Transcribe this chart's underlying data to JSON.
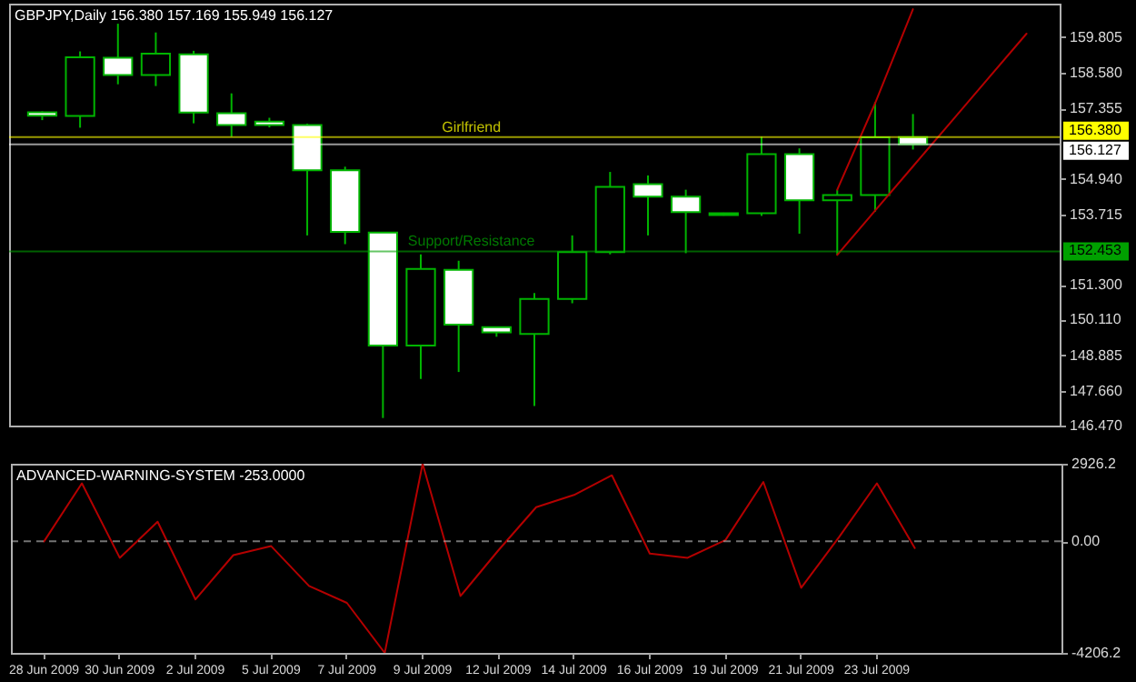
{
  "chart_data": [
    {
      "type": "candlestick",
      "title": "GBPJPY,Daily 156.380 157.169 155.949 156.127",
      "categories": [
        null,
        null,
        null,
        null,
        null,
        null,
        null,
        null,
        null,
        null,
        null,
        null,
        null,
        null,
        null,
        null,
        null,
        null,
        null,
        null,
        null,
        null,
        null,
        null,
        null,
        null,
        null
      ],
      "ohlc": [
        [
          157.23,
          157.26,
          156.96,
          157.11
        ],
        [
          157.1,
          159.32,
          156.7,
          159.12
        ],
        [
          159.1,
          160.27,
          158.19,
          158.51
        ],
        [
          158.51,
          159.97,
          158.13,
          159.24
        ],
        [
          159.22,
          159.34,
          156.85,
          157.22
        ],
        [
          157.2,
          157.88,
          156.39,
          156.79
        ],
        [
          156.91,
          157.04,
          156.71,
          156.79
        ],
        [
          156.79,
          156.84,
          153.0,
          155.24
        ],
        [
          155.24,
          155.36,
          152.7,
          153.12
        ],
        [
          153.1,
          153.12,
          146.73,
          149.22
        ],
        [
          149.22,
          152.35,
          148.07,
          151.85
        ],
        [
          151.82,
          152.13,
          148.31,
          149.94
        ],
        [
          149.85,
          149.87,
          149.52,
          149.67
        ],
        [
          149.62,
          151.02,
          147.14,
          150.82
        ],
        [
          150.82,
          153.0,
          150.67,
          152.43
        ],
        [
          152.43,
          155.18,
          152.35,
          154.67
        ],
        [
          154.76,
          155.06,
          153.0,
          154.33
        ],
        [
          154.33,
          154.57,
          152.39,
          153.8
        ],
        [
          153.7,
          153.78,
          153.68,
          153.76
        ],
        [
          153.76,
          156.39,
          153.67,
          155.79
        ],
        [
          155.79,
          155.99,
          153.06,
          154.21
        ],
        [
          154.21,
          154.57,
          152.33,
          154.39
        ],
        [
          154.39,
          157.58,
          153.81,
          156.37
        ],
        [
          156.38,
          157.169,
          155.949,
          156.127
        ],
        null,
        null,
        null
      ],
      "color": "#00b400",
      "series": [
        {
          "type": "line",
          "color": "#b40000",
          "values": [
            null,
            null,
            null,
            null,
            null,
            null,
            null,
            null,
            null,
            null,
            null,
            null,
            null,
            null,
            null,
            null,
            null,
            null,
            null,
            null,
            null,
            154.57,
            157.54,
            160.77,
            null,
            null,
            null
          ]
        },
        {
          "type": "line",
          "color": "#b40000",
          "values": [
            null,
            null,
            null,
            null,
            null,
            null,
            null,
            null,
            null,
            null,
            null,
            null,
            null,
            null,
            null,
            null,
            null,
            null,
            null,
            null,
            null,
            152.33,
            153.85,
            155.37,
            156.89,
            158.41,
            159.93
          ]
        }
      ],
      "ylim": [
        146.47,
        160.96
      ],
      "yticks": [
        159.805,
        {
          "value": 158.58,
          "label": "158.580"
        },
        157.355,
        {
          "value": 156.38,
          "label": "156.380"
        },
        156.127,
        {
          "value": 154.94,
          "label": "154.940"
        },
        153.715,
        152.453,
        {
          "value": 151.3,
          "label": "151.300"
        },
        {
          "value": 150.11,
          "label": "150.110"
        },
        148.885,
        {
          "value": 147.66,
          "label": "147.660"
        },
        {
          "value": 146.47,
          "label": "146.470"
        }
      ],
      "ref_lines": [
        {
          "axis": "y",
          "value": 156.38,
          "label": "Girlfriend",
          "color": "#ffff00"
        },
        {
          "axis": "y",
          "value": 156.127,
          "color": "#ffffff"
        },
        {
          "axis": "y",
          "value": 152.453,
          "label": "Support/Resistance",
          "color": "#00a000"
        }
      ]
    },
    {
      "type": "line",
      "title": "ADVANCED-WARNING-SYSTEM -253.0000",
      "categories": [
        "28 Jun 2009",
        null,
        "30 Jun 2009",
        null,
        "2 Jul 2009",
        null,
        "5 Jul 2009",
        null,
        "7 Jul 2009",
        null,
        "9 Jul 2009",
        null,
        "12 Jul 2009",
        null,
        "14 Jul 2009",
        null,
        "16 Jul 2009",
        null,
        "19 Jul 2009",
        null,
        "21 Jul 2009",
        null,
        "23 Jul 2009",
        null,
        null,
        null,
        null
      ],
      "series": [
        {
          "color": "#b40000",
          "values": [
            0,
            2190,
            -620,
            740,
            -2190,
            -520,
            -180,
            -1680,
            -2320,
            -4206.2,
            2926.2,
            -2060,
            -340,
            1290,
            1750,
            2490,
            -460,
            -620,
            50,
            2240,
            -1750,
            160,
            2190,
            -253,
            null,
            null,
            null
          ]
        }
      ],
      "ylim": [
        -4206.2,
        2926.2
      ],
      "yticks": [
        2926.2,
        {
          "value": 0,
          "label": "0.00"
        },
        -4206.2
      ],
      "ref_lines": [
        {
          "axis": "y",
          "value": 0,
          "color": "#c0c0c0",
          "line_style": "dashed"
        }
      ]
    }
  ]
}
